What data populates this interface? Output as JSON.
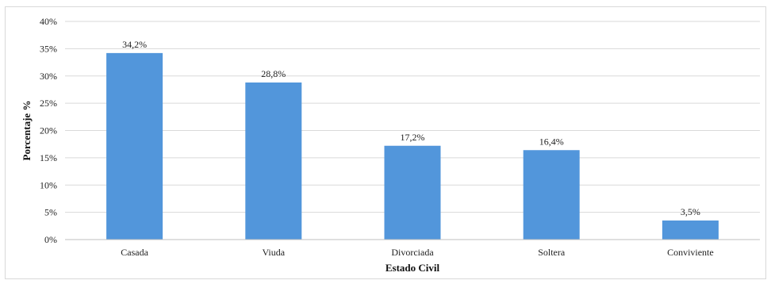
{
  "chart_data": {
    "type": "bar",
    "categories": [
      "Casada",
      "Viuda",
      "Divorciada",
      "Soltera",
      "Conviviente"
    ],
    "values": [
      34.2,
      28.8,
      17.2,
      16.4,
      3.5
    ],
    "data_labels": [
      "34,2%",
      "28,8%",
      "17,2%",
      "16,4%",
      "3,5%"
    ],
    "title": "",
    "xlabel": "Estado Civil",
    "ylabel": "Porcentaje %",
    "ylim": [
      0,
      40
    ],
    "yticks": [
      0,
      5,
      10,
      15,
      20,
      25,
      30,
      35,
      40
    ],
    "ytick_labels": [
      "0%",
      "5%",
      "10%",
      "15%",
      "20%",
      "25%",
      "30%",
      "35%",
      "40%"
    ],
    "grid": true,
    "legend": "none",
    "colors": {
      "bar": "#5296DB",
      "grid": "#D9D9D9",
      "axis": "#BFBFBF"
    }
  }
}
